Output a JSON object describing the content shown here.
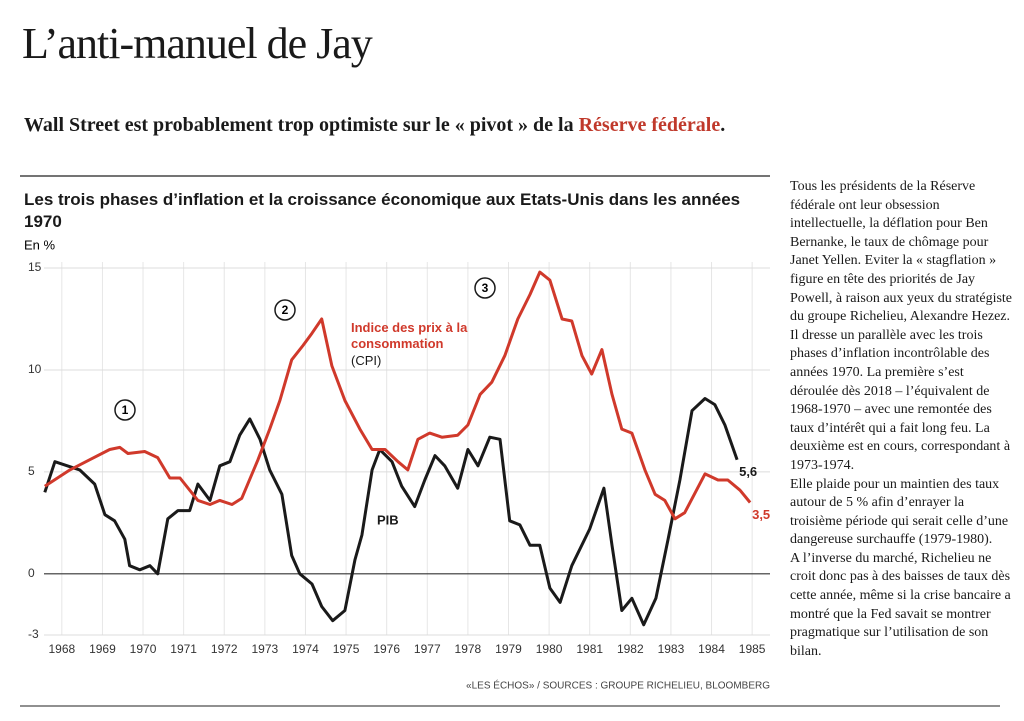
{
  "header": {
    "title": "L’anti-manuel de Jay",
    "subtitle": {
      "text": "Wall Street est probablement trop optimiste sur le « pivot » de la",
      "highlight": "Réserve fédérale",
      "end": "."
    }
  },
  "chart_data": {
    "type": "line",
    "title": "Les trois phases d’inflation et la croissance économique aux Etats-Unis dans les années 1970",
    "y_label": "En %",
    "source": "«LES ÉCHOS» / SOURCES : GROUPE RICHELIEU, BLOOMBERG",
    "phases": [
      "1",
      "2",
      "3"
    ],
    "xlim": [
      1966.97,
      1985.44
    ],
    "xticks": [
      1968,
      1969,
      1970,
      1971,
      1972,
      1973,
      1974,
      1975,
      1976,
      1977,
      1978,
      1979,
      1980,
      1981,
      1982,
      1983,
      1984,
      1985
    ],
    "ylim": [
      -3,
      15
    ],
    "yticks": [
      15,
      10,
      5,
      0,
      -3
    ],
    "grid": true,
    "series": [
      {
        "name": "PIB",
        "color": "#1a1a1a",
        "x": [
          1967.58,
          1967.83,
          1968.44,
          1968.81,
          1969.06,
          1969.3,
          1969.55,
          1969.67,
          1969.92,
          1970.17,
          1970.36,
          1970.61,
          1970.86,
          1971.15,
          1971.35,
          1971.65,
          1971.89,
          1972.14,
          1972.38,
          1972.63,
          1972.88,
          1973.12,
          1973.42,
          1973.66,
          1973.86,
          1974.16,
          1974.4,
          1974.67,
          1974.97,
          1975.22,
          1975.39,
          1975.64,
          1975.83,
          1976.13,
          1976.37,
          1976.69,
          1976.94,
          1977.19,
          1977.43,
          1977.75,
          1978.0,
          1978.25,
          1978.54,
          1978.79,
          1979.03,
          1979.28,
          1979.53,
          1979.77,
          1980.02,
          1980.27,
          1980.56,
          1981.0,
          1981.35,
          1981.55,
          1981.79,
          1982.04,
          1982.33,
          1982.63,
          1982.93,
          1983.22,
          1983.52,
          1983.84,
          1984.08,
          1984.33,
          1984.63
        ],
        "values": [
          4.0,
          5.5,
          5.1,
          4.4,
          2.9,
          2.6,
          1.7,
          0.4,
          0.2,
          0.4,
          0.0,
          2.7,
          3.1,
          3.1,
          4.4,
          3.6,
          5.3,
          5.5,
          6.8,
          7.6,
          6.6,
          5.1,
          3.9,
          0.9,
          0.0,
          -0.5,
          -1.6,
          -2.3,
          -1.8,
          0.7,
          1.9,
          5.1,
          6.1,
          5.5,
          4.3,
          3.3,
          4.6,
          5.8,
          5.3,
          4.2,
          6.1,
          5.3,
          6.7,
          6.6,
          2.6,
          2.4,
          1.4,
          1.4,
          -0.7,
          -1.4,
          0.4,
          2.2,
          4.2,
          1.4,
          -1.8,
          -1.2,
          -2.5,
          -1.2,
          1.7,
          4.6,
          8.0,
          8.6,
          8.3,
          7.3,
          5.6
        ],
        "value_labels": [
          null,
          null,
          null,
          null,
          null,
          null,
          null,
          null,
          null,
          null,
          null,
          null,
          null,
          null,
          null,
          null,
          null,
          null,
          null,
          null,
          null,
          null,
          null,
          null,
          null,
          null,
          null,
          null,
          null,
          null,
          null,
          null,
          null,
          null,
          null,
          null,
          null,
          null,
          null,
          null,
          null,
          null,
          null,
          null,
          null,
          null,
          null,
          null,
          null,
          null,
          null,
          null,
          null,
          null,
          null,
          null,
          null,
          null,
          null,
          null,
          null,
          null,
          null,
          null,
          "5,6"
        ]
      },
      {
        "name": "Indice des prix à la consommation",
        "abbreviation": "(CPI)",
        "color": "#d0392b",
        "x": [
          1967.58,
          1968.2,
          1968.69,
          1969.18,
          1969.43,
          1969.63,
          1970.04,
          1970.36,
          1970.66,
          1970.91,
          1971.35,
          1971.65,
          1971.89,
          1972.19,
          1972.43,
          1972.83,
          1973.12,
          1973.37,
          1973.66,
          1973.94,
          1974.16,
          1974.4,
          1974.65,
          1974.97,
          1975.34,
          1975.64,
          1975.96,
          1976.28,
          1976.52,
          1976.77,
          1977.06,
          1977.36,
          1977.75,
          1978.0,
          1978.3,
          1978.59,
          1978.91,
          1979.23,
          1979.53,
          1979.77,
          1980.02,
          1980.32,
          1980.56,
          1980.81,
          1981.05,
          1981.3,
          1981.55,
          1981.79,
          1982.04,
          1982.36,
          1982.61,
          1982.85,
          1983.1,
          1983.34,
          1983.84,
          1984.16,
          1984.4,
          1984.7,
          1984.95
        ],
        "values": [
          4.3,
          5.1,
          5.6,
          6.1,
          6.2,
          5.9,
          6.0,
          5.7,
          4.7,
          4.7,
          3.6,
          3.4,
          3.6,
          3.4,
          3.7,
          5.6,
          7.1,
          8.5,
          10.5,
          11.2,
          11.8,
          12.5,
          10.2,
          8.5,
          7.1,
          6.1,
          6.1,
          5.5,
          5.1,
          6.6,
          6.9,
          6.7,
          6.8,
          7.3,
          8.8,
          9.4,
          10.7,
          12.5,
          13.7,
          14.8,
          14.4,
          12.5,
          12.4,
          10.7,
          9.8,
          11.0,
          8.8,
          7.1,
          6.9,
          5.1,
          3.9,
          3.6,
          2.7,
          3.0,
          4.9,
          4.6,
          4.6,
          4.1,
          3.5
        ],
        "value_labels": [
          null,
          null,
          null,
          null,
          null,
          null,
          null,
          null,
          null,
          null,
          null,
          null,
          null,
          null,
          null,
          null,
          null,
          null,
          null,
          null,
          null,
          null,
          null,
          null,
          null,
          null,
          null,
          null,
          null,
          null,
          null,
          null,
          null,
          null,
          null,
          null,
          null,
          null,
          null,
          null,
          null,
          null,
          null,
          null,
          null,
          null,
          null,
          null,
          null,
          null,
          null,
          null,
          null,
          null,
          null,
          null,
          null,
          null,
          "3,5"
        ]
      }
    ]
  },
  "article": {
    "paragraphs": [
      "Tous les présidents de la Réserve fédérale ont leur obsession intellectuelle, la déflation pour Ben Bernanke, le taux de chômage pour Janet Yellen. Eviter la « stagflation » figure en tête des priorités de Jay Powell, à raison aux yeux du stratégiste du groupe Richelieu, Alexandre Hezez.",
      "Il dresse un parallèle avec les trois phases d’inflation incontrôlable des années 1970. La première s’est déroulée dès 2018 – l’équivalent de 1968-1970 – avec une remontée des taux d’intérêt qui a fait long feu. La deuxième est en cours, correspondant à 1973-1974.",
      "Elle plaide pour un maintien des taux autour de 5 % afin d’enrayer la troisième période qui serait celle d’une dangereuse surchauffe (1979-1980).",
      "A l’inverse du marché, Richelieu ne croit donc pas à des baisses de taux dès cette année, même si la crise bancaire a montré que la Fed savait se montrer pragmatique sur l’utilisation de son bilan."
    ]
  }
}
